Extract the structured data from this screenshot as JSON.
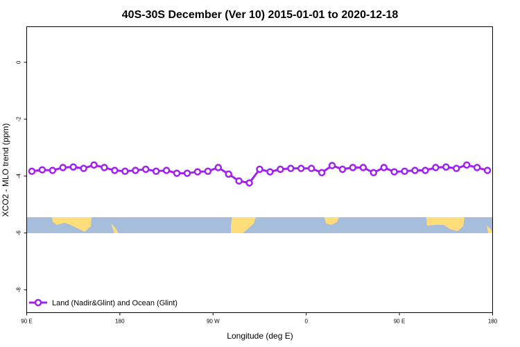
{
  "chart_data": {
    "type": "line",
    "title": "40S-30S December (Ver 10)   2015-01-01 to 2020-12-18",
    "x_label": "Longitude (deg E)",
    "y_label": "XCO2 - MLO trend (ppm)",
    "x": [
      95,
      105,
      115,
      125,
      135,
      145,
      155,
      165,
      175,
      185,
      195,
      205,
      215,
      225,
      235,
      245,
      255,
      265,
      275,
      285,
      295,
      305,
      315,
      325,
      335,
      345,
      355,
      365,
      375,
      385,
      395,
      405,
      415,
      425,
      435,
      445,
      455,
      465,
      475,
      485,
      495,
      505,
      515,
      525,
      535
    ],
    "series": [
      {
        "name": "Land (Nadir&Glint) and Ocean (Glint)",
        "color": "#a020f0",
        "values": [
          -3.83,
          -3.78,
          -3.8,
          -3.7,
          -3.68,
          -3.73,
          -3.61,
          -3.7,
          -3.8,
          -3.83,
          -3.8,
          -3.76,
          -3.83,
          -3.8,
          -3.9,
          -3.9,
          -3.85,
          -3.83,
          -3.7,
          -3.93,
          -4.17,
          -4.24,
          -3.76,
          -3.85,
          -3.76,
          -3.73,
          -3.73,
          -3.73,
          -3.88,
          -3.63,
          -3.76,
          -3.7,
          -3.7,
          -3.88,
          -3.7,
          -3.85,
          -3.83,
          -3.8,
          -3.8,
          -3.7,
          -3.68,
          -3.73,
          -3.61,
          -3.7,
          -3.8
        ]
      }
    ],
    "xlim": [
      90,
      540
    ],
    "xticks": [
      {
        "value": 90,
        "label": "90 E"
      },
      180,
      {
        "value": 270,
        "label": "90 W"
      },
      {
        "value": 360,
        "label": "0"
      },
      {
        "value": 450,
        "label": "90 E"
      },
      {
        "value": 540,
        "label": "180"
      }
    ],
    "ylim": [
      -8.8,
      1.25
    ],
    "yticks": [
      0,
      -2,
      -4,
      -6,
      -8
    ],
    "legend": "bottom-left"
  }
}
